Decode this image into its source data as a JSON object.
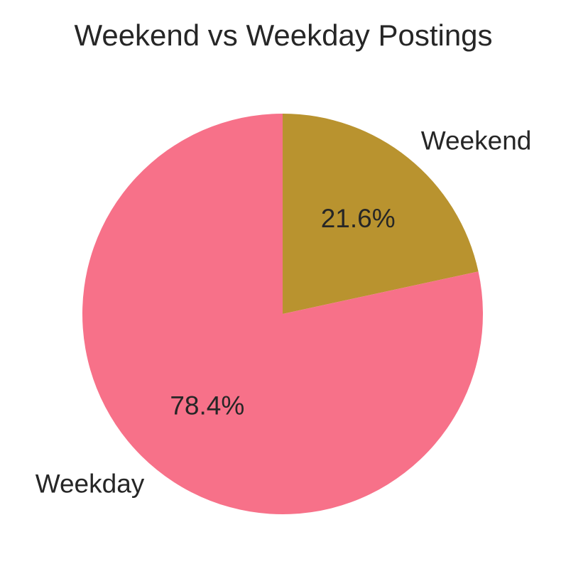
{
  "chart_data": {
    "type": "pie",
    "title": "Weekend vs Weekday Postings",
    "slices": [
      {
        "label": "Weekend",
        "value": 21.6,
        "pct_label": "21.6%",
        "color": "#b9932f"
      },
      {
        "label": "Weekday",
        "value": 78.4,
        "pct_label": "78.4%",
        "color": "#f77189"
      }
    ],
    "start_angle": 90,
    "direction": "clockwise",
    "legend": "none"
  }
}
